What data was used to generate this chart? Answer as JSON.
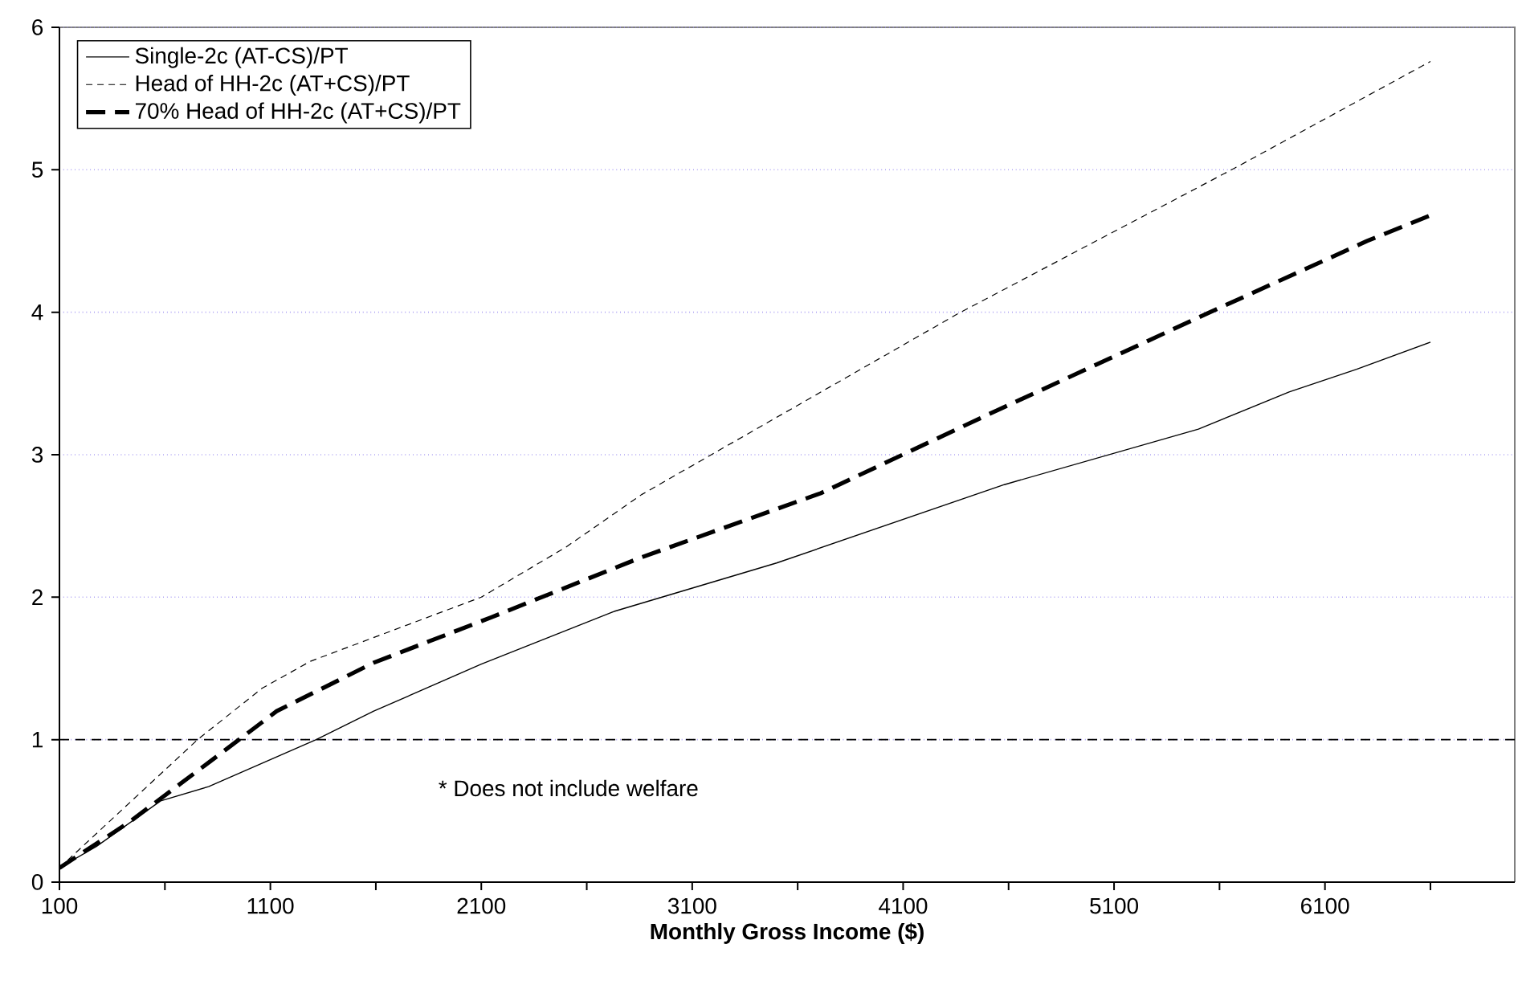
{
  "chart_data": {
    "type": "line",
    "xlabel": "Monthly Gross Income ($)",
    "xlim": [
      100,
      7000
    ],
    "xticks": [
      100,
      {
        "value": 600,
        "label": null
      },
      1100,
      {
        "value": 1600,
        "label": null
      },
      2100,
      {
        "value": 2600,
        "label": null
      },
      3100,
      {
        "value": 3600,
        "label": null
      },
      4100,
      {
        "value": 4600,
        "label": null
      },
      5100,
      {
        "value": 5600,
        "label": null
      },
      6100,
      {
        "value": 6600,
        "label": null
      }
    ],
    "ylim": [
      0,
      6
    ],
    "yticks": [
      0,
      1,
      2,
      3,
      4,
      5,
      6
    ],
    "grid": "y",
    "legend": "top left",
    "ref_lines": [
      {
        "axis": "y",
        "value": 1,
        "color": "#000000",
        "line_style": "dashed"
      }
    ],
    "annotations": [
      "* Does not include welfare"
    ],
    "series": [
      {
        "name": "Single-2c (AT-CS)/PT",
        "color": "#000000",
        "line_style": "solid",
        "x": [
          100,
          275,
          580,
          807,
          1317,
          1590,
          2100,
          2730,
          3500,
          4580,
          5500,
          5930,
          6250,
          6600
        ],
        "values": [
          0.1,
          0.25,
          0.57,
          0.67,
          1.0,
          1.2,
          1.53,
          1.9,
          2.24,
          2.79,
          3.18,
          3.44,
          3.6,
          3.79
        ]
      },
      {
        "name": "Head of HH-2c (AT+CS)/PT",
        "color": "#000000",
        "line_style": "dotted",
        "x": [
          100,
          755,
          1060,
          1290,
          2100,
          2500,
          2860,
          4360,
          5670,
          6600
        ],
        "values": [
          0.1,
          1.0,
          1.36,
          1.55,
          2.0,
          2.35,
          2.72,
          3.99,
          5.01,
          5.76
        ]
      },
      {
        "name": "70% Head of HH-2c (AT+CS)/PT",
        "color": "#000000",
        "line_style": "dashed",
        "x": [
          100,
          430,
          880,
          1130,
          1590,
          2150,
          2860,
          3710,
          4500,
          5540,
          6300,
          6600
        ],
        "values": [
          0.1,
          0.42,
          0.92,
          1.2,
          1.54,
          1.86,
          2.28,
          2.73,
          3.28,
          3.99,
          4.5,
          4.68
        ]
      }
    ]
  }
}
